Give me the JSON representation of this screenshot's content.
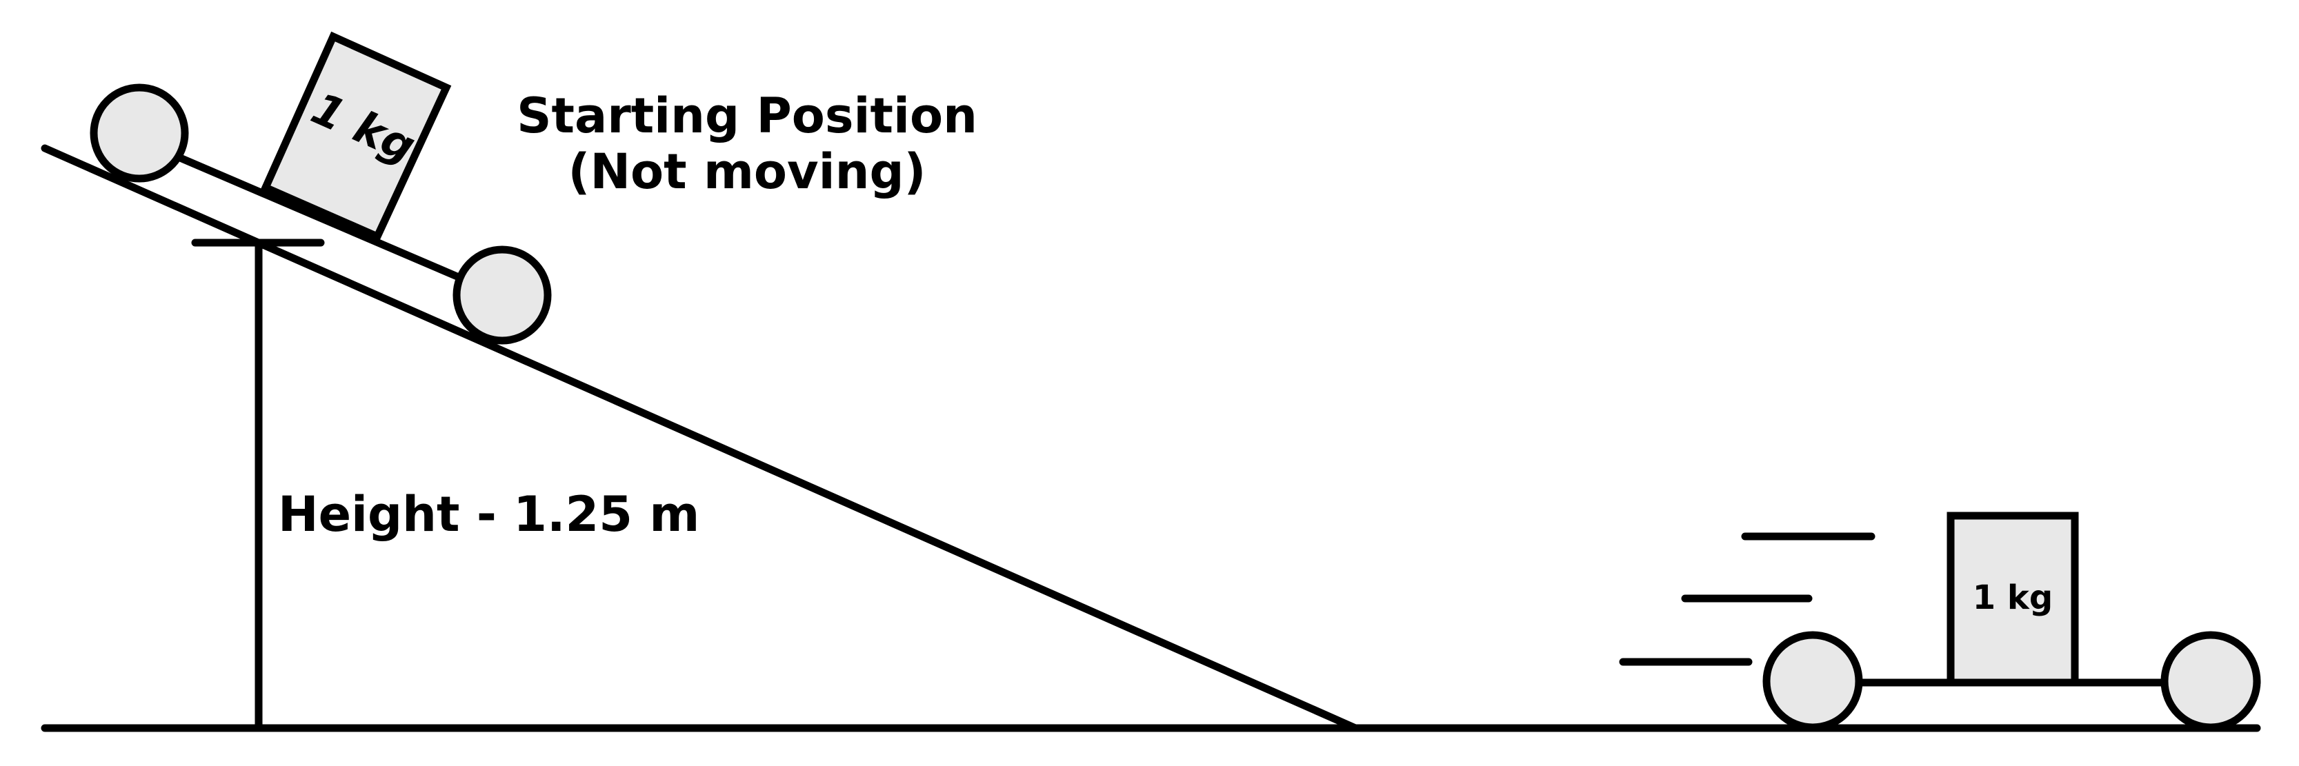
{
  "colors": {
    "ink": "#000000",
    "wheel_fill": "#e8e8e8",
    "box_fill": "#e8e8e8",
    "background": "#ffffff"
  },
  "labels": {
    "start_line1": "Starting Position",
    "start_line2": "(Not moving)",
    "height": "Height - 1.25 m",
    "mass_top": "1 kg",
    "mass_bottom": "1 kg"
  }
}
